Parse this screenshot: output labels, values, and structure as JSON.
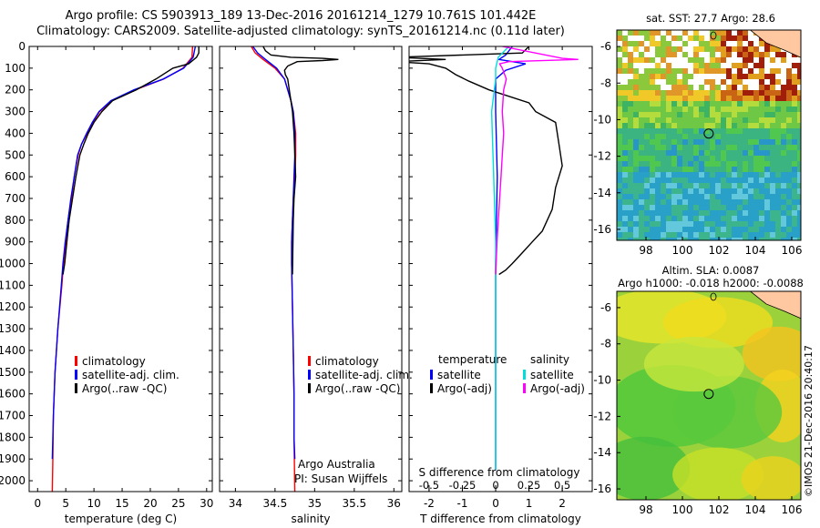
{
  "header": {
    "title_line1": "Argo profile: CS 5903913_189 13-Dec-2016 20161214_1279 10.761S 101.442E",
    "title_line2": "Climatology: CARS2009. Satellite-adjusted climatology: synTS_20161214.nc (0.11d later)"
  },
  "depth_ticks": [
    "0",
    "100",
    "200",
    "300",
    "400",
    "500",
    "600",
    "700",
    "800",
    "900",
    "1000",
    "1100",
    "1200",
    "1300",
    "1400",
    "1500",
    "1600",
    "1700",
    "1800",
    "1900",
    "2000"
  ],
  "chart_data": [
    {
      "type": "line",
      "name": "temperature",
      "xlabel": "temperature (deg C)",
      "xlim": [
        -1.5,
        31
      ],
      "ylim": [
        2050,
        0
      ],
      "x_ticks": [
        "0",
        "5",
        "10",
        "15",
        "20",
        "25",
        "30"
      ],
      "legend": [
        "climatology",
        "satellite-adj. clim.",
        "Argo(..raw -QC)"
      ],
      "legend_colors": [
        "#ff0000",
        "#0000ff",
        "#000000"
      ],
      "series": [
        {
          "name": "climatology",
          "color": "#ff0000",
          "x": [
            27.5,
            27.4,
            25.8,
            22.4,
            17.3,
            13.1,
            11.0,
            9.8,
            8.8,
            7.8,
            7.2,
            6.5,
            6.0,
            5.4,
            5.0,
            4.6,
            4.3,
            3.6,
            3.1,
            2.8,
            2.7,
            2.6
          ],
          "y": [
            0,
            50,
            100,
            150,
            200,
            250,
            300,
            350,
            400,
            450,
            500,
            600,
            700,
            800,
            900,
            1000,
            1100,
            1300,
            1500,
            1700,
            1900,
            2050
          ]
        },
        {
          "name": "satellite-adj. clim.",
          "color": "#0000ff",
          "x": [
            28.0,
            27.6,
            25.9,
            22.3,
            17.1,
            13.0,
            10.9,
            9.7,
            8.7,
            7.8,
            7.1,
            6.5,
            5.9,
            5.4,
            4.9,
            4.5,
            4.2,
            3.6,
            3.1,
            2.8,
            2.6
          ],
          "y": [
            0,
            50,
            100,
            150,
            200,
            250,
            300,
            350,
            400,
            450,
            500,
            600,
            700,
            800,
            900,
            1000,
            1100,
            1300,
            1500,
            1700,
            1900
          ]
        },
        {
          "name": "Argo",
          "color": "#000000",
          "x": [
            28.6,
            28.6,
            28.2,
            26.8,
            24.0,
            21.0,
            17.5,
            13.3,
            11.4,
            10.0,
            9.0,
            8.2,
            7.5,
            6.8,
            6.2,
            5.6,
            5.2,
            4.8,
            4.5
          ],
          "y": [
            0,
            30,
            50,
            80,
            100,
            150,
            200,
            250,
            300,
            350,
            400,
            450,
            500,
            600,
            700,
            800,
            900,
            1000,
            1050
          ]
        }
      ]
    },
    {
      "type": "line",
      "name": "salinity",
      "xlabel": "salinity",
      "xlim": [
        33.8,
        36.1
      ],
      "ylim": [
        2050,
        0
      ],
      "x_ticks": [
        "34",
        "34.5",
        "35",
        "35.5",
        "36"
      ],
      "legend": [
        "climatology",
        "satellite-adj. clim.",
        "Argo(..raw -QC)"
      ],
      "legend_colors": [
        "#ff0000",
        "#0000ff",
        "#000000"
      ],
      "annotation_lines": [
        "Argo Australia",
        "PI: Susan Wijffels"
      ],
      "series": [
        {
          "name": "climatology",
          "color": "#ff0000",
          "x": [
            34.2,
            34.25,
            34.35,
            34.5,
            34.62,
            34.66,
            34.7,
            34.73,
            34.76,
            34.76,
            34.75,
            34.73,
            34.72,
            34.71,
            34.71,
            34.72,
            34.73,
            34.74,
            34.74,
            34.75
          ],
          "y": [
            0,
            30,
            60,
            100,
            150,
            200,
            250,
            300,
            400,
            500,
            600,
            700,
            800,
            900,
            1000,
            1200,
            1400,
            1600,
            1800,
            2050
          ]
        },
        {
          "name": "satellite-adj. clim.",
          "color": "#0000ff",
          "x": [
            34.22,
            34.28,
            34.38,
            34.52,
            34.62,
            34.66,
            34.7,
            34.73,
            34.75,
            34.75,
            34.74,
            34.73,
            34.72,
            34.71,
            34.71,
            34.72,
            34.73,
            34.74,
            34.74,
            34.75
          ],
          "y": [
            0,
            30,
            60,
            100,
            150,
            200,
            250,
            300,
            400,
            500,
            600,
            700,
            800,
            900,
            1000,
            1200,
            1400,
            1600,
            1800,
            1900
          ]
        },
        {
          "name": "Argo",
          "color": "#000000",
          "x": [
            34.35,
            34.38,
            34.45,
            34.7,
            35.1,
            35.3,
            35.1,
            34.78,
            34.66,
            34.62,
            34.63,
            34.66,
            34.68,
            34.7,
            34.72,
            34.74,
            34.75,
            34.76,
            34.74,
            34.73,
            34.72
          ],
          "y": [
            0,
            20,
            40,
            50,
            55,
            60,
            65,
            70,
            90,
            110,
            130,
            150,
            200,
            250,
            300,
            400,
            500,
            600,
            700,
            800,
            1050
          ]
        }
      ]
    },
    {
      "type": "line",
      "name": "difference",
      "xlabel": "T difference from climatology",
      "top_xlabel": "S difference from climatology",
      "xlim": [
        -2.6,
        2.9
      ],
      "top_xlim": [
        -0.65,
        0.725
      ],
      "ylim": [
        2050,
        0
      ],
      "x_ticks": [
        "-2",
        "-1",
        "0",
        "1",
        "2"
      ],
      "top_x_ticks": [
        "-0.5",
        "-0.25",
        "0",
        "0.25",
        "0.5"
      ],
      "legend_headers": [
        "temperature",
        "salinity"
      ],
      "legend": [
        "satellite",
        "Argo(-adj)",
        "satellite",
        "Argo(-adj)"
      ],
      "legend_colors": [
        "#0000ff",
        "#000000",
        "#00dddd",
        "#ff00ff"
      ],
      "series": [
        {
          "name": "T satellite",
          "color": "#0000ff",
          "x": [
            0.5,
            0.3,
            0.1,
            0.9,
            0.3,
            0.0,
            0.0,
            0.05,
            0.0,
            0.0
          ],
          "y": [
            0,
            40,
            60,
            80,
            110,
            150,
            300,
            600,
            1000,
            1950
          ]
        },
        {
          "name": "T Argo",
          "color": "#000000",
          "x": [
            1.0,
            0.8,
            -3.0,
            -1.5,
            -3.0,
            -2.0,
            -1.5,
            -1.2,
            -0.8,
            -0.2,
            1.0,
            1.2,
            1.8,
            1.9,
            2.0,
            1.8,
            1.7,
            1.4,
            1.1,
            0.8,
            0.5,
            0.3,
            0.1
          ],
          "y": [
            0,
            30,
            50,
            60,
            70,
            80,
            100,
            130,
            160,
            200,
            260,
            300,
            350,
            450,
            550,
            650,
            750,
            850,
            900,
            950,
            1000,
            1030,
            1050
          ]
        },
        {
          "name": "S satellite",
          "color": "#00dddd",
          "x": [
            0.1,
            0.02,
            0.0,
            0.0,
            -0.03,
            -0.02,
            -0.01,
            0.0,
            0.0,
            0.0,
            0.0
          ],
          "y": [
            0,
            50,
            100,
            150,
            300,
            500,
            700,
            900,
            1100,
            1500,
            1950
          ]
        },
        {
          "name": "S Argo",
          "color": "#ff00ff",
          "x": [
            0.05,
            0.5,
            0.62,
            0.1,
            0.03,
            0.05,
            0.08,
            0.06,
            0.05,
            0.06,
            0.05,
            0.04,
            0.03,
            0.02,
            0.01,
            0.0
          ],
          "y": [
            0,
            55,
            60,
            70,
            80,
            100,
            150,
            200,
            300,
            400,
            500,
            600,
            700,
            800,
            900,
            1050
          ]
        }
      ]
    },
    {
      "type": "heatmap",
      "name": "sst-map",
      "title": "sat. SST: 27.7  Argo: 28.6",
      "x_ticks": [
        "98",
        "100",
        "102",
        "104",
        "106"
      ],
      "y_ticks": [
        "-6",
        "-8",
        "-10",
        "-12",
        "-14",
        "-16"
      ],
      "xlim": [
        96.4,
        106.5
      ],
      "ylim": [
        -16.6,
        -5.1
      ],
      "marker": {
        "lon": 101.442,
        "lat": -10.761
      },
      "colors": {
        "land": "#ffc8a0",
        "missing": "#ffffff"
      }
    },
    {
      "type": "heatmap",
      "name": "sla-map",
      "title": "Altim. SLA: 0.0087",
      "subtitle": "Argo h1000: -0.018  h2000: -0.0088",
      "x_ticks": [
        "98",
        "100",
        "102",
        "104",
        "106"
      ],
      "y_ticks": [
        "-6",
        "-8",
        "-10",
        "-12",
        "-14",
        "-16"
      ],
      "xlim": [
        96.4,
        106.5
      ],
      "ylim": [
        -16.6,
        -5.1
      ],
      "marker": {
        "lon": 101.442,
        "lat": -10.761
      },
      "colors": {
        "land": "#ffc8a0"
      }
    }
  ],
  "credit": "©IMOS 21-Dec-2016 20:40:17"
}
